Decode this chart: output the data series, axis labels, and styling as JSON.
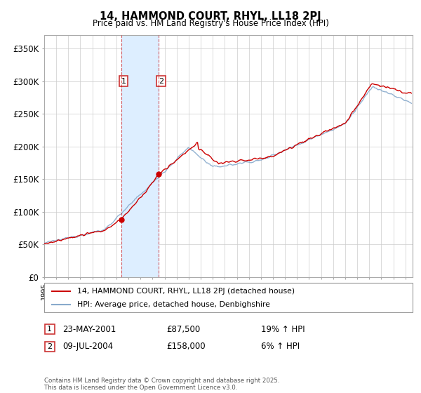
{
  "title": "14, HAMMOND COURT, RHYL, LL18 2PJ",
  "subtitle": "Price paid vs. HM Land Registry's House Price Index (HPI)",
  "legend_label_red": "14, HAMMOND COURT, RHYL, LL18 2PJ (detached house)",
  "legend_label_blue": "HPI: Average price, detached house, Denbighshire",
  "purchase1_date": "23-MAY-2001",
  "purchase1_price": "£87,500",
  "purchase1_hpi": "19% ↑ HPI",
  "purchase2_date": "09-JUL-2004",
  "purchase2_price": "£158,000",
  "purchase2_hpi": "6% ↑ HPI",
  "footer": "Contains HM Land Registry data © Crown copyright and database right 2025.\nThis data is licensed under the Open Government Licence v3.0.",
  "ylim": [
    0,
    370000
  ],
  "yticks": [
    0,
    50000,
    100000,
    150000,
    200000,
    250000,
    300000,
    350000
  ],
  "ytick_labels": [
    "£0",
    "£50K",
    "£100K",
    "£150K",
    "£200K",
    "£250K",
    "£300K",
    "£350K"
  ],
  "purchase1_x": 2001.39,
  "purchase1_y": 87500,
  "purchase2_x": 2004.52,
  "purchase2_y": 158000,
  "shade_xmin": 2001.39,
  "shade_xmax": 2004.52,
  "red_color": "#cc0000",
  "blue_color": "#88aacc",
  "shade_color": "#ddeeff",
  "grid_color": "#cccccc",
  "background_color": "#ffffff",
  "box_color": "#cc3333",
  "xlim_min": 1995,
  "xlim_max": 2025.6
}
